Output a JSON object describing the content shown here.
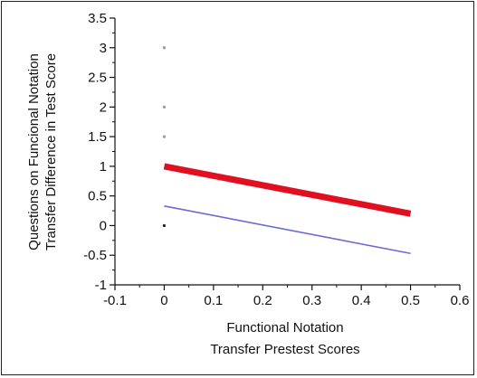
{
  "chart_data": {
    "type": "scatter",
    "title": "",
    "xlabel_lines": [
      "Functional Notation",
      "Transfer Prestest Scores"
    ],
    "ylabel_lines": [
      "Questions on Funcional Notation",
      "Transfer Difference in Test Score"
    ],
    "xlim": [
      -0.1,
      0.6
    ],
    "ylim": [
      -1,
      3.5
    ],
    "x_ticks": [
      -0.1,
      0,
      0.1,
      0.2,
      0.3,
      0.4,
      0.5,
      0.6
    ],
    "x_tick_labels": [
      "-0.1",
      "0",
      "0.1",
      "0.2",
      "0.3",
      "0.4",
      "0.5",
      "0.6"
    ],
    "y_ticks": [
      -1,
      -0.5,
      0,
      0.5,
      1,
      1.5,
      2,
      2.5,
      3,
      3.5
    ],
    "y_tick_labels": [
      "-1",
      "-0.5",
      "0",
      "0.5",
      "1",
      "1.5",
      "2",
      "2.5",
      "3",
      "3.5"
    ],
    "grid": false,
    "points": [
      {
        "x": 0,
        "y": 3,
        "color": "#9a9a9a"
      },
      {
        "x": 0,
        "y": 2,
        "color": "#9a9a9a"
      },
      {
        "x": 0,
        "y": 1.5,
        "color": "#9a9a9a"
      },
      {
        "x": 0,
        "y": 0,
        "color": "#222222"
      }
    ],
    "series": [
      {
        "x": [
          0,
          0.5
        ],
        "y": [
          1.0,
          0.2
        ],
        "color": "#e01020",
        "width": "thick"
      },
      {
        "x": [
          0,
          0.5
        ],
        "y": [
          0.33,
          -0.47
        ],
        "color": "#6a6ad8",
        "width": "thin"
      }
    ]
  }
}
